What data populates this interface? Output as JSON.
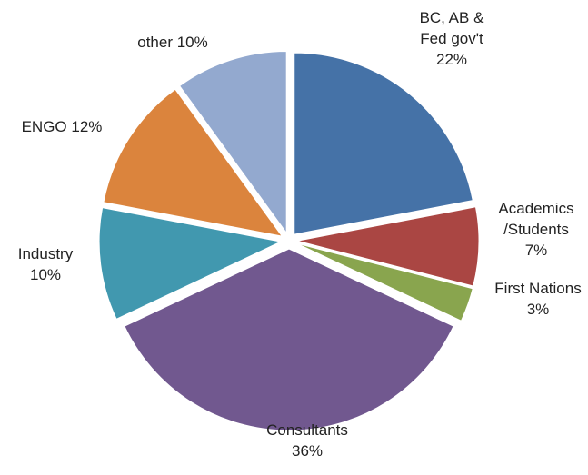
{
  "chart_data": {
    "type": "pie",
    "categories": [
      "BC, AB & Fed gov't",
      "Academics /Students",
      "First Nations",
      "Consultants",
      "Industry",
      "ENGO",
      "other"
    ],
    "values": [
      22,
      7,
      3,
      36,
      10,
      12,
      10
    ],
    "value_labels": [
      "22%",
      "7%",
      "3%",
      "36%",
      "10%",
      "12%",
      "10%"
    ],
    "colors": [
      "#4572a7",
      "#aa4643",
      "#89a54e",
      "#71588f",
      "#4198af",
      "#db843d",
      "#93a9cf"
    ]
  }
}
